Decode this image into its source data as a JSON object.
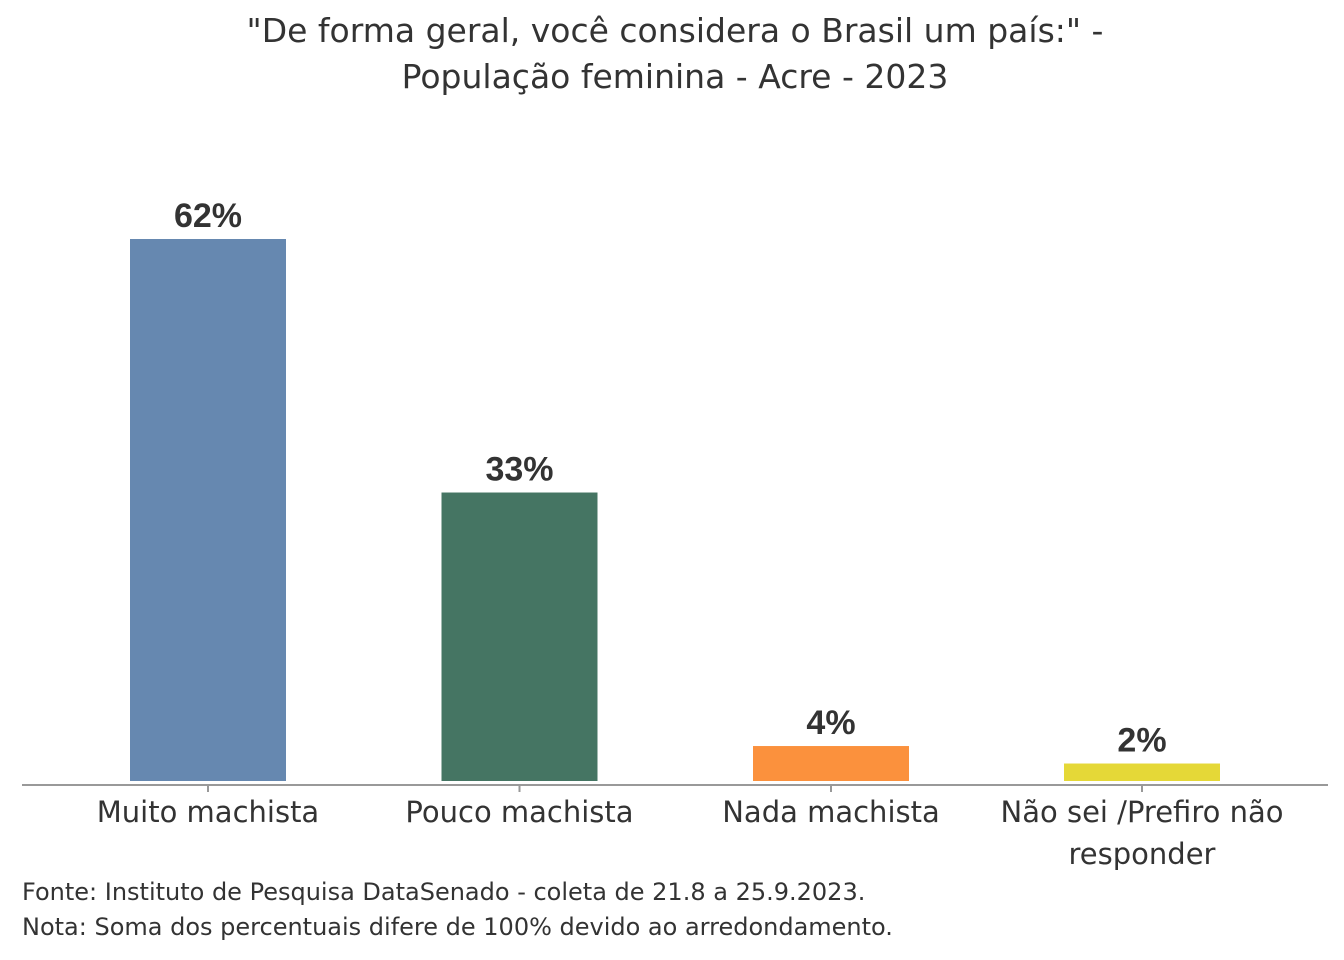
{
  "chart_data": {
    "type": "bar",
    "title_line1": "\"De forma geral, você considera o Brasil um país:\" -",
    "title_line2": "População feminina - Acre - 2023",
    "categories": [
      "Muito machista",
      "Pouco machista",
      "Nada machista",
      "Não sei /Prefiro não responder"
    ],
    "category_lines": [
      [
        "Muito machista"
      ],
      [
        "Pouco machista"
      ],
      [
        "Nada machista"
      ],
      [
        "Não sei /Prefiro não",
        "responder"
      ]
    ],
    "values": [
      62,
      33,
      4,
      2
    ],
    "data_labels": [
      "62%",
      "33%",
      "4%",
      "2%"
    ],
    "colors": [
      "#6688b0",
      "#457563",
      "#fb913d",
      "#e5d837"
    ],
    "xlabel": "",
    "ylabel": "",
    "ylim": [
      0,
      62
    ],
    "grid": false
  },
  "footer": {
    "source": "Fonte: Instituto de Pesquisa DataSenado - coleta de 21.8 a 25.9.2023.",
    "note": "Nota: Soma dos percentuais difere de 100% devido ao arredondamento."
  }
}
